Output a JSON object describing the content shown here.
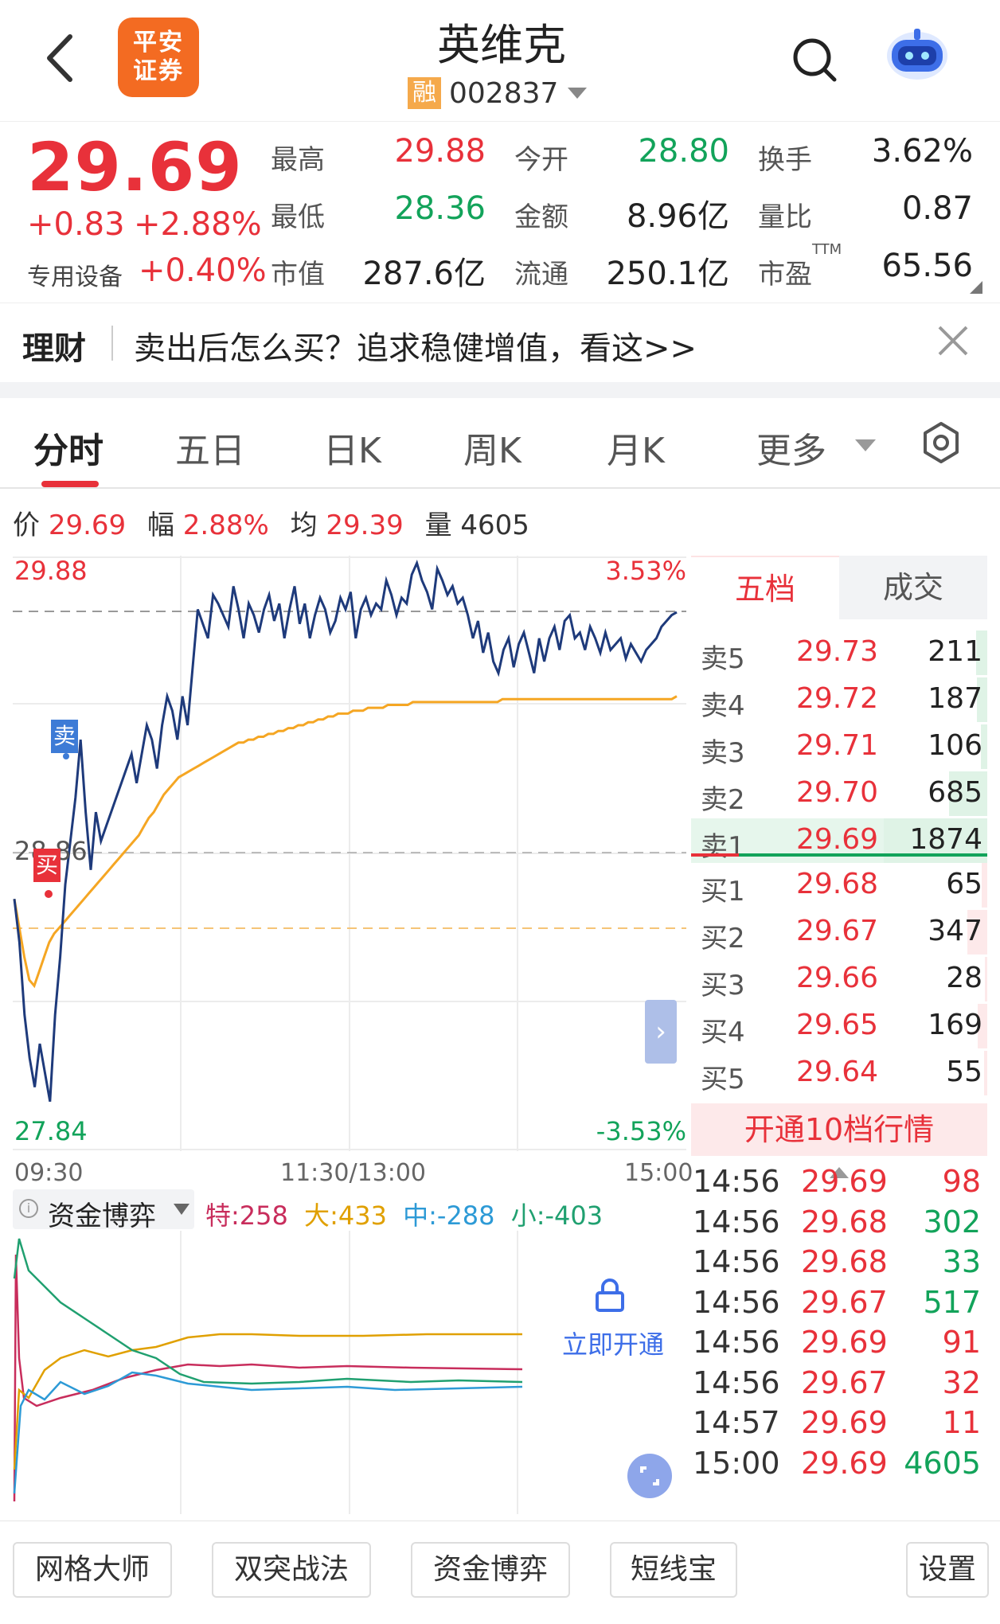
{
  "header": {
    "logo_text": "平安证券",
    "stock_name": "英维克",
    "margin_tag": "融",
    "stock_code": "002837"
  },
  "quote": {
    "price": "29.69",
    "change": "+0.83",
    "change_pct": "+2.88%",
    "industry_label": "专用设备",
    "industry_change": "+0.40%",
    "high_label": "最高",
    "high": "29.88",
    "open_label": "今开",
    "open": "28.80",
    "turnover_label": "换手",
    "turnover": "3.62%",
    "low_label": "最低",
    "low": "28.36",
    "amount_label": "金额",
    "amount": "8.96亿",
    "vol_ratio_label": "量比",
    "vol_ratio": "0.87",
    "mcap_label": "市值",
    "mcap": "287.6亿",
    "float_label": "流通",
    "float": "250.1亿",
    "pe_label": "市盈",
    "pe_sup": "TTM",
    "pe": "65.56"
  },
  "banner": {
    "tag": "理财",
    "text": "卖出后怎么买？追求稳健增值，看这>>"
  },
  "tabs": [
    {
      "label": "分时"
    },
    {
      "label": "五日"
    },
    {
      "label": "日K"
    },
    {
      "label": "周K"
    },
    {
      "label": "月K"
    },
    {
      "label": "更多"
    }
  ],
  "info_line": {
    "price_label": "价",
    "price": "29.69",
    "range_label": "幅",
    "range": "2.88%",
    "avg_label": "均",
    "avg": "29.39",
    "vol_label": "量",
    "vol": "4605"
  },
  "chart": {
    "y_top": "29.88",
    "y_top_pct": "3.53%",
    "y_bottom": "27.84",
    "y_bottom_pct": "-3.53%",
    "prev_close_label": "28.86",
    "sell_marker": "卖",
    "buy_marker": "买",
    "time_start": "09:30",
    "time_mid": "11:30/13:00",
    "time_end": "15:00",
    "colors": {
      "price_line": "#1e3a7b",
      "avg_line": "#f5a623",
      "up": "#e8313a",
      "down": "#12a35a"
    }
  },
  "chart_data": {
    "type": "line",
    "ylim": [
      27.84,
      29.88
    ],
    "prev_close": 28.86,
    "series": [
      {
        "values": [
          28.7,
          28.55,
          28.3,
          28.15,
          28.05,
          28.2,
          28.1,
          28.0,
          28.3,
          28.5,
          28.75,
          28.9,
          29.05,
          29.25,
          29.0,
          28.8,
          29.0,
          28.9,
          28.95,
          29.0,
          29.05,
          29.1,
          29.15,
          29.2,
          29.1,
          29.2,
          29.3,
          29.25,
          29.15,
          29.3,
          29.4,
          29.35,
          29.25,
          29.4,
          29.3,
          29.5,
          29.7,
          29.65,
          29.6,
          29.75,
          29.72,
          29.68,
          29.64,
          29.78,
          29.7,
          29.6,
          29.72,
          29.68,
          29.62,
          29.7,
          29.75,
          29.66,
          29.72,
          29.6,
          29.7,
          29.78,
          29.65,
          29.72,
          29.6,
          29.68,
          29.74,
          29.7,
          29.62,
          29.66,
          29.74,
          29.7,
          29.76,
          29.6,
          29.7,
          29.74,
          29.68,
          29.72,
          29.7,
          29.8,
          29.75,
          29.68,
          29.74,
          29.72,
          29.82,
          29.86,
          29.8,
          29.76,
          29.7,
          29.84,
          29.8,
          29.75,
          29.78,
          29.72,
          29.74,
          29.68,
          29.6,
          29.66,
          29.55,
          29.62,
          29.52,
          29.48,
          29.56,
          29.6,
          29.5,
          29.58,
          29.62,
          29.55,
          29.48,
          29.6,
          29.52,
          29.6,
          29.64,
          29.56,
          29.66,
          29.68,
          29.6,
          29.62,
          29.56,
          29.64,
          29.6,
          29.55,
          29.62,
          29.56,
          29.58,
          29.6,
          29.53,
          29.58,
          29.55,
          29.52,
          29.56,
          29.58,
          29.6,
          29.64,
          29.66,
          29.68,
          29.69
        ]
      },
      {
        "values": [
          28.7,
          28.6,
          28.5,
          28.42,
          28.4,
          28.45,
          28.5,
          28.55,
          28.58,
          28.6,
          28.62,
          28.64,
          28.66,
          28.68,
          28.7,
          28.72,
          28.74,
          28.76,
          28.78,
          28.8,
          28.82,
          28.84,
          28.86,
          28.88,
          28.9,
          28.92,
          28.95,
          28.98,
          29.0,
          29.03,
          29.06,
          29.08,
          29.1,
          29.12,
          29.13,
          29.14,
          29.15,
          29.16,
          29.17,
          29.18,
          29.19,
          29.2,
          29.21,
          29.22,
          29.23,
          29.24,
          29.24,
          29.25,
          29.25,
          29.26,
          29.26,
          29.27,
          29.27,
          29.28,
          29.28,
          29.29,
          29.29,
          29.3,
          29.3,
          29.31,
          29.31,
          29.32,
          29.32,
          29.33,
          29.33,
          29.34,
          29.34,
          29.34,
          29.35,
          29.35,
          29.35,
          29.36,
          29.36,
          29.36,
          29.36,
          29.37,
          29.37,
          29.37,
          29.37,
          29.37,
          29.38,
          29.38,
          29.38,
          29.38,
          29.38,
          29.38,
          29.38,
          29.38,
          29.38,
          29.38,
          29.38,
          29.38,
          29.38,
          29.38,
          29.38,
          29.38,
          29.38,
          29.38,
          29.39,
          29.39,
          29.39,
          29.39,
          29.39,
          29.39,
          29.39,
          29.39,
          29.39,
          29.39,
          29.39,
          29.39,
          29.39,
          29.39,
          29.39,
          29.39,
          29.39,
          29.39,
          29.39,
          29.39,
          29.39,
          29.39,
          29.39,
          29.39,
          29.39,
          29.39,
          29.39,
          29.39,
          29.39,
          29.39,
          29.39,
          29.39,
          29.39,
          29.39,
          29.39,
          29.4
        ]
      }
    ]
  },
  "order_book": {
    "tab_five": "五档",
    "tab_trades": "成交",
    "asks": [
      {
        "label": "卖5",
        "price": "29.73",
        "vol": "211",
        "share": 0.11
      },
      {
        "label": "卖4",
        "price": "29.72",
        "vol": "187",
        "share": 0.1
      },
      {
        "label": "卖3",
        "price": "29.71",
        "vol": "106",
        "share": 0.06
      },
      {
        "label": "卖2",
        "price": "29.70",
        "vol": "685",
        "share": 0.37
      },
      {
        "label": "卖1",
        "price": "29.69",
        "vol": "1874",
        "share": 1.0
      }
    ],
    "bids": [
      {
        "label": "买1",
        "price": "29.68",
        "vol": "65",
        "share": 0.05
      },
      {
        "label": "买2",
        "price": "29.67",
        "vol": "347",
        "share": 0.19
      },
      {
        "label": "买3",
        "price": "29.66",
        "vol": "28",
        "share": 0.02
      },
      {
        "label": "买4",
        "price": "29.65",
        "vol": "169",
        "share": 0.09
      },
      {
        "label": "买5",
        "price": "29.64",
        "vol": "55",
        "share": 0.03
      }
    ],
    "open10_label": "开通10档行情"
  },
  "fund": {
    "title": "资金博弈",
    "special_label": "特",
    "special": "258",
    "big_label": "大",
    "big": "433",
    "mid_label": "中",
    "mid": "-288",
    "small_label": "小",
    "small": "-403",
    "unlock_label": "立即开通"
  },
  "ticks": [
    {
      "time": "14:56",
      "price": "29.69",
      "vol": "98",
      "dir": "up"
    },
    {
      "time": "14:56",
      "price": "29.68",
      "vol": "302",
      "dir": "down"
    },
    {
      "time": "14:56",
      "price": "29.68",
      "vol": "33",
      "dir": "down"
    },
    {
      "time": "14:56",
      "price": "29.67",
      "vol": "517",
      "dir": "down"
    },
    {
      "time": "14:56",
      "price": "29.69",
      "vol": "91",
      "dir": "up"
    },
    {
      "time": "14:56",
      "price": "29.67",
      "vol": "32",
      "dir": "up"
    },
    {
      "time": "14:57",
      "price": "29.69",
      "vol": "11",
      "dir": "up"
    },
    {
      "time": "15:00",
      "price": "29.69",
      "vol": "4605",
      "dir": "down"
    }
  ],
  "bottom_bar": {
    "b1": "网格大师",
    "b2": "双突战法",
    "b3": "资金博弈",
    "b4": "短线宝",
    "settings": "设置"
  }
}
